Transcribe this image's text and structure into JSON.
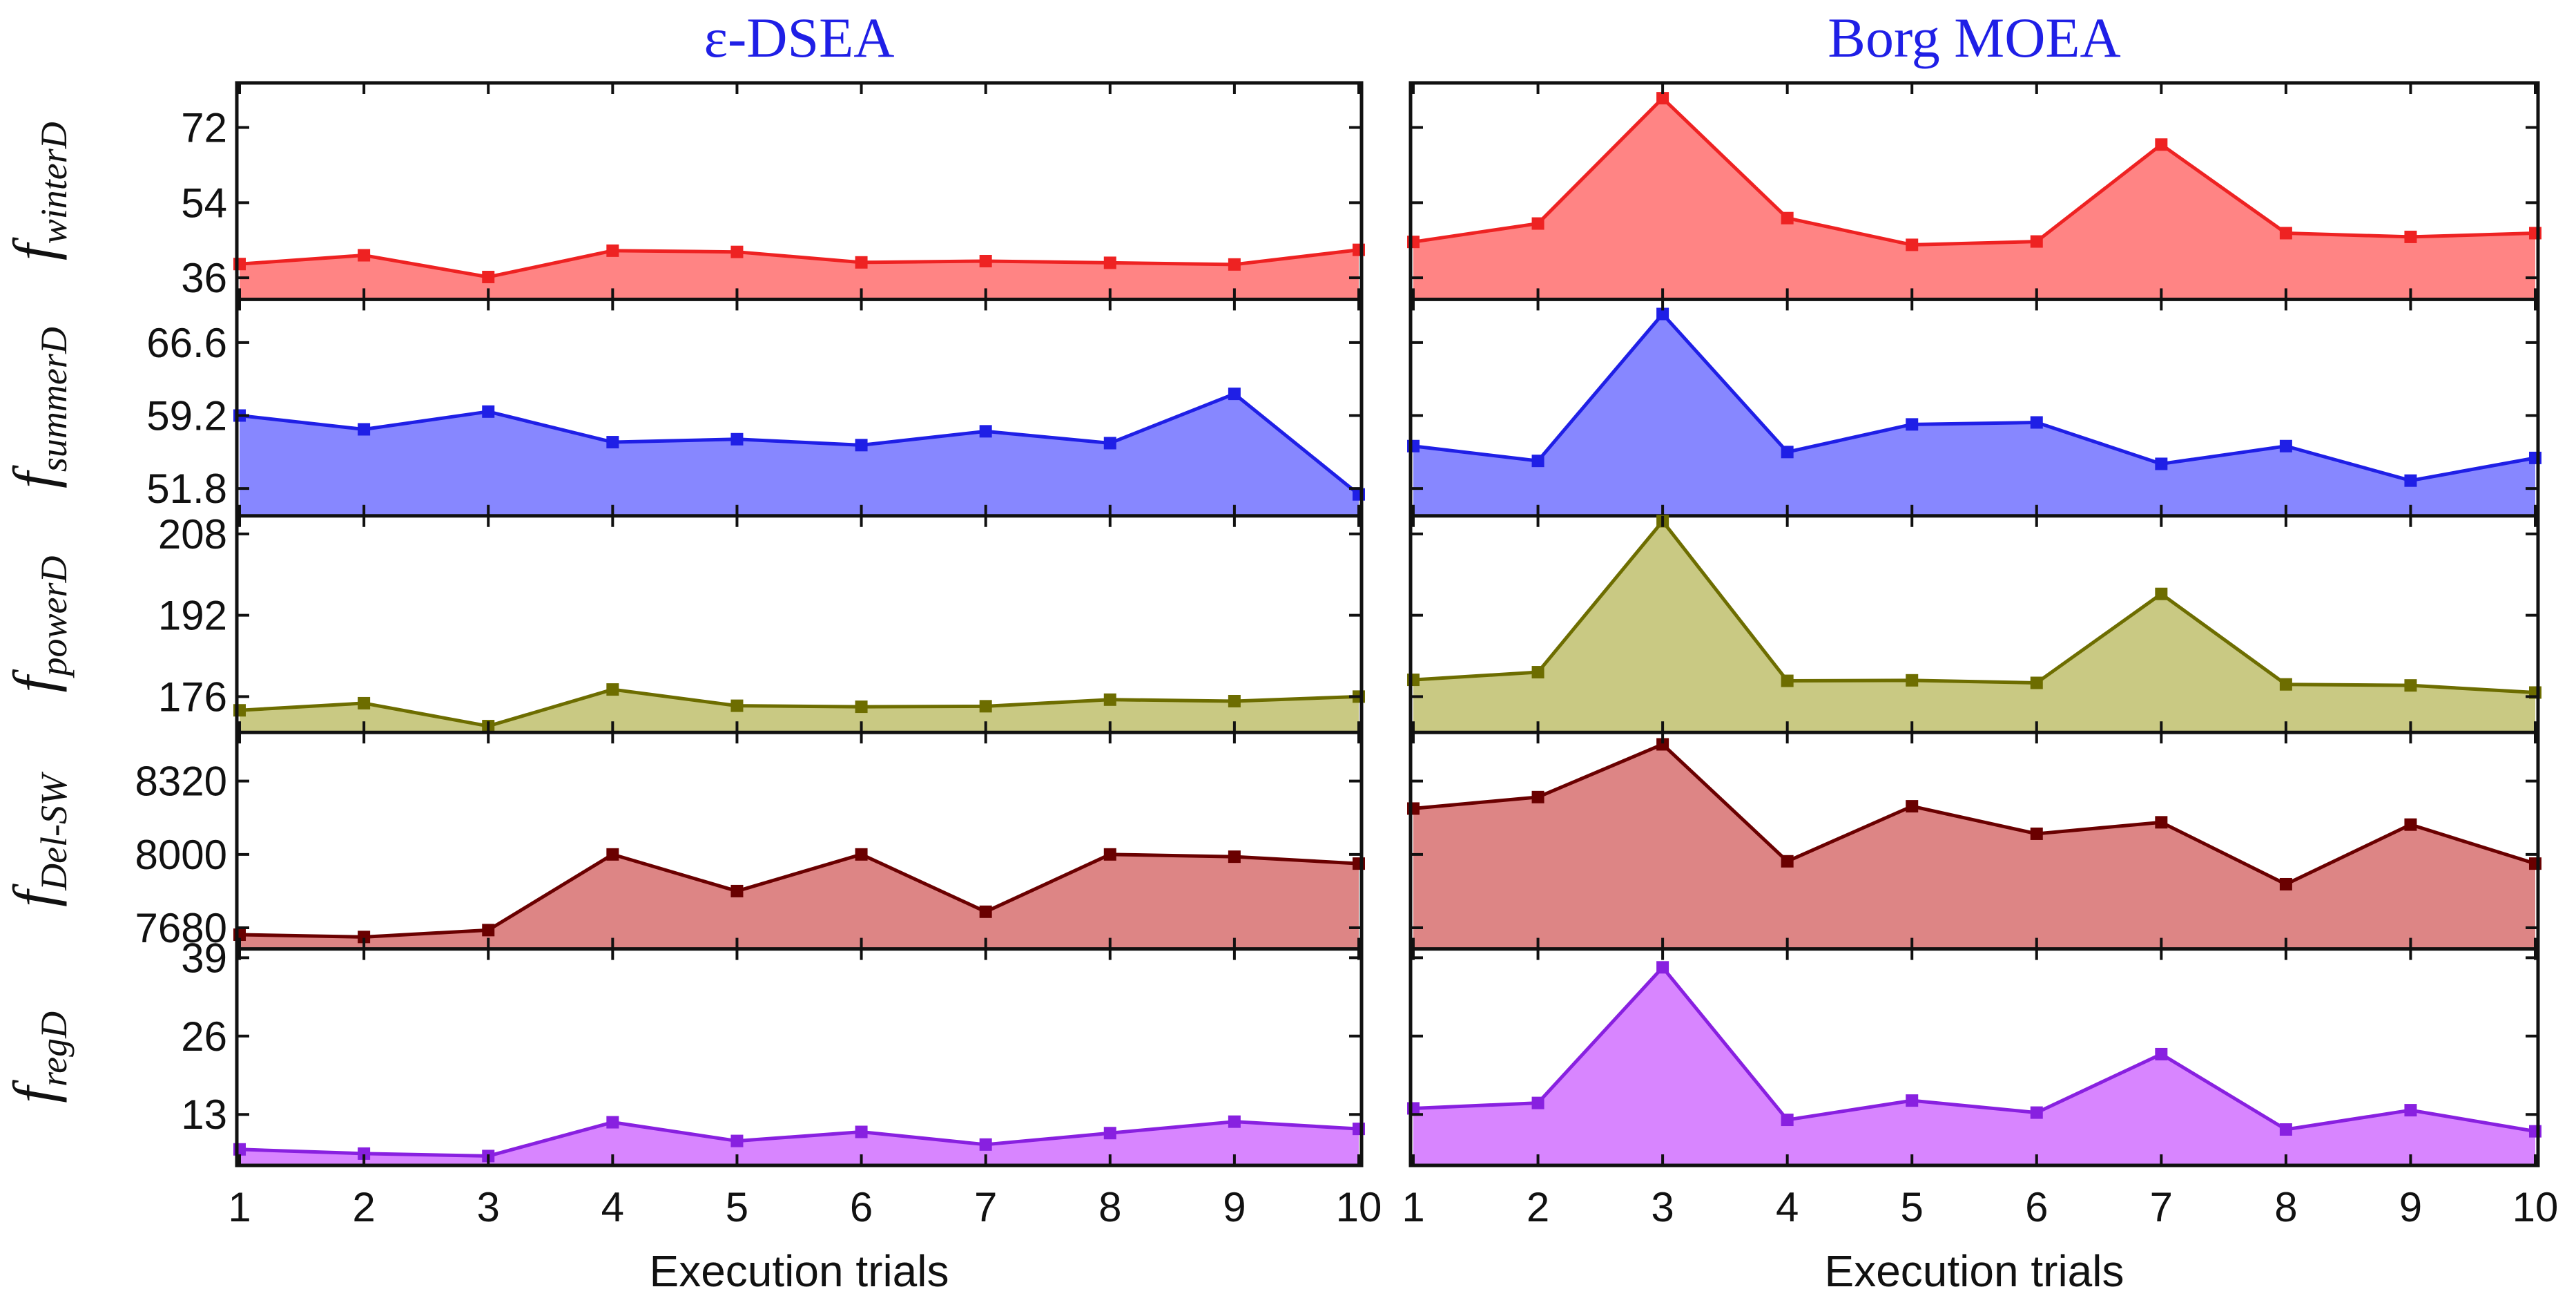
{
  "chart_data": {
    "type": "area",
    "xlabel": "Execution trials",
    "x": [
      1,
      2,
      3,
      4,
      5,
      6,
      7,
      8,
      9,
      10
    ],
    "x_tick_labels": [
      "1",
      "2",
      "3",
      "4",
      "5",
      "6",
      "7",
      "8",
      "9",
      "10"
    ],
    "columns": [
      {
        "id": "edsea",
        "title": "ε-DSEA"
      },
      {
        "id": "borg",
        "title": "Borg MOEA"
      }
    ],
    "rows": [
      {
        "id": "winter",
        "ylabel_main": "f",
        "ylabel_sub": "winterD",
        "color": "#ee2222",
        "fill": "#ff8484",
        "ylim": [
          31.5,
          82
        ],
        "yticks": [
          36,
          54,
          72
        ],
        "ytick_labels": [
          "36",
          "54",
          "72"
        ],
        "series": {
          "edsea": [
            39.3,
            41.4,
            36.2,
            42.5,
            42.2,
            39.7,
            40.0,
            39.6,
            39.2,
            42.7
          ],
          "borg": [
            44.6,
            49.0,
            79.0,
            50.3,
            43.9,
            44.7,
            67.9,
            46.7,
            45.8,
            46.7
          ]
        }
      },
      {
        "id": "summer",
        "ylabel_main": "f",
        "ylabel_sub": "summerD",
        "color": "#1f1fe6",
        "fill": "#8787ff",
        "ylim": [
          49.3,
          70.7
        ],
        "yticks": [
          51.8,
          59.2,
          66.6
        ],
        "ytick_labels": [
          "51.8",
          "59.2",
          "66.6"
        ],
        "series": {
          "edsea": [
            59.2,
            57.8,
            59.6,
            56.5,
            56.8,
            56.2,
            57.6,
            56.4,
            61.4,
            51.2
          ],
          "borg": [
            56.1,
            54.6,
            69.5,
            55.5,
            58.3,
            58.5,
            54.3,
            56.1,
            52.6,
            54.9
          ]
        }
      },
      {
        "id": "power",
        "ylabel_main": "f",
        "ylabel_sub": "powerD",
        "color": "#6d6d00",
        "fill": "#c9c983",
        "ylim": [
          169.5,
          211
        ],
        "yticks": [
          176,
          192,
          208
        ],
        "ytick_labels": [
          "176",
          "192",
          "208"
        ],
        "series": {
          "edsea": [
            173.3,
            174.7,
            170.2,
            177.4,
            174.2,
            174.0,
            174.1,
            175.4,
            175.1,
            176.0
          ],
          "borg": [
            179.3,
            180.8,
            210.5,
            179.1,
            179.2,
            178.7,
            196.2,
            178.4,
            178.2,
            176.8
          ]
        }
      },
      {
        "id": "delsw",
        "ylabel_main": "f",
        "ylabel_sub": "Del-SW",
        "color": "#6a0000",
        "fill": "#dd8585",
        "ylim": [
          7600,
          8520
        ],
        "yticks": [
          7680,
          8000,
          8320
        ],
        "ytick_labels": [
          "7680",
          "8000",
          "8320"
        ],
        "series": {
          "edsea": [
            7650,
            7640,
            7670,
            8000,
            7840,
            8000,
            7750,
            8000,
            7990,
            7960
          ],
          "borg": [
            8200,
            8250,
            8480,
            7970,
            8210,
            8090,
            8140,
            7870,
            8130,
            7960
          ]
        }
      },
      {
        "id": "reg",
        "ylabel_main": "f",
        "ylabel_sub": "regD",
        "color": "#8820e0",
        "fill": "#d885ff",
        "ylim": [
          5,
          40
        ],
        "yticks": [
          13,
          26,
          39
        ],
        "ytick_labels": [
          "13",
          "26",
          "39"
        ],
        "series": {
          "edsea": [
            7.2,
            6.5,
            6.1,
            11.7,
            8.6,
            10.1,
            8.0,
            9.9,
            11.8,
            10.6
          ],
          "borg": [
            14.0,
            14.9,
            37.4,
            12.1,
            15.3,
            13.3,
            23.0,
            10.5,
            13.7,
            10.2
          ]
        }
      }
    ]
  }
}
